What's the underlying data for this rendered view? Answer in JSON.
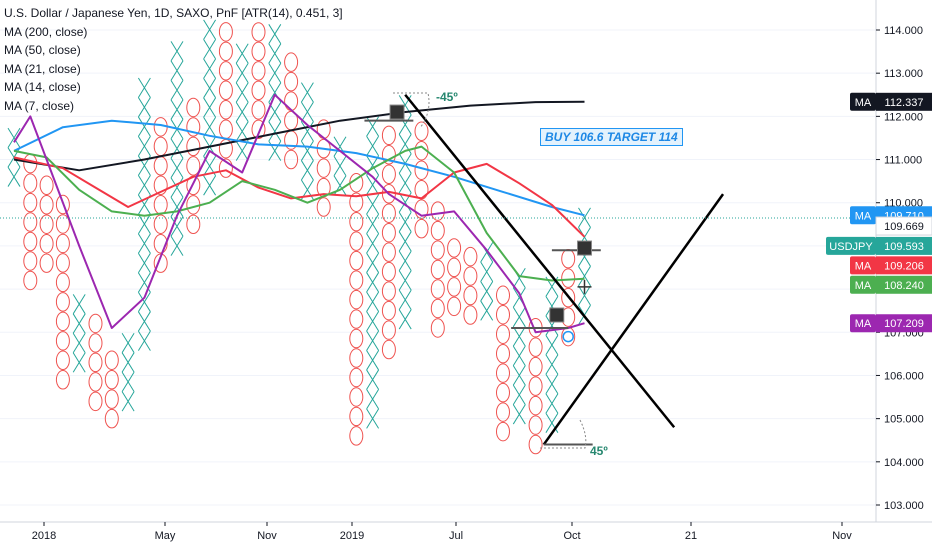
{
  "legend": {
    "title": "U.S. Dollar / Japanese Yen, 1D, SAXO, PnF [ATR(14), 0.451, 3]",
    "ma_lines": [
      "MA (200, close)",
      "MA (50, close)",
      "MA (21, close)",
      "MA (14, close)",
      "MA (7, close)"
    ]
  },
  "annotations": {
    "buy_text": "BUY 106.6 TARGET 114",
    "angle_neg": "-45º",
    "angle_pos": "45º"
  },
  "colors": {
    "x_box": "#26a69a",
    "o_box": "#ef5350",
    "ma200": "#131722",
    "ma50": "#2196f3",
    "ma21": "#f23645",
    "ma14": "#4caf50",
    "ma7": "#9c27b0",
    "trend": "#000000"
  },
  "chart_data": {
    "type": "pnf",
    "ylim": [
      102.8,
      114.6
    ],
    "box_size": 0.451,
    "y_ticks": [
      "114.000",
      "113.000",
      "112.000",
      "111.000",
      "110.000",
      "109.000",
      "108.000",
      "107.000",
      "106.000",
      "105.000",
      "104.000",
      "103.000"
    ],
    "x_ticks": [
      "2018",
      "May",
      "Nov",
      "2019",
      "Jul",
      "Oct",
      "21",
      "Nov"
    ],
    "price_tags": [
      {
        "label": "MA",
        "value": "112.337",
        "color": "#131722",
        "price": 112.337
      },
      {
        "label": "MA",
        "value": "109.710",
        "color": "#2196f3",
        "price": 109.71
      },
      {
        "label": "",
        "value": "109.669",
        "color": "#ffffff",
        "price": 109.46
      },
      {
        "label": "USDJPY",
        "value": "109.593",
        "color": "#26a69a",
        "price": 109.0
      },
      {
        "label": "MA",
        "value": "109.206",
        "color": "#f23645",
        "price": 108.55
      },
      {
        "label": "MA",
        "value": "108.240",
        "color": "#4caf50",
        "price": 108.1
      },
      {
        "label": "MA",
        "value": "107.209",
        "color": "#9c27b0",
        "price": 107.209
      }
    ],
    "columns": [
      {
        "type": "X",
        "from": 110.6,
        "to": 111.5
      },
      {
        "type": "O",
        "from": 108.2,
        "to": 111.0
      },
      {
        "type": "O",
        "from": 108.6,
        "to": 110.6
      },
      {
        "type": "O",
        "from": 105.9,
        "to": 110.0
      },
      {
        "type": "X",
        "from": 106.3,
        "to": 107.7
      },
      {
        "type": "O",
        "from": 105.4,
        "to": 107.2
      },
      {
        "type": "O",
        "from": 105.0,
        "to": 106.3
      },
      {
        "type": "X",
        "from": 105.4,
        "to": 106.6
      },
      {
        "type": "X",
        "from": 106.8,
        "to": 112.5
      },
      {
        "type": "O",
        "from": 108.6,
        "to": 111.9
      },
      {
        "type": "X",
        "from": 109.0,
        "to": 113.3
      },
      {
        "type": "O",
        "from": 109.5,
        "to": 112.4
      },
      {
        "type": "X",
        "from": 110.4,
        "to": 114.2
      },
      {
        "type": "O",
        "from": 110.8,
        "to": 113.8
      },
      {
        "type": "X",
        "from": 111.2,
        "to": 113.6
      },
      {
        "type": "O",
        "from": 111.7,
        "to": 113.8
      },
      {
        "type": "X",
        "from": 111.2,
        "to": 113.8
      },
      {
        "type": "O",
        "from": 111.0,
        "to": 113.2
      },
      {
        "type": "X",
        "from": 110.3,
        "to": 112.5
      },
      {
        "type": "O",
        "from": 109.9,
        "to": 111.9
      },
      {
        "type": "X",
        "from": 110.4,
        "to": 111.5
      },
      {
        "type": "O",
        "from": 104.6,
        "to": 110.3
      },
      {
        "type": "X",
        "from": 105.0,
        "to": 111.8
      },
      {
        "type": "O",
        "from": 106.6,
        "to": 111.4
      },
      {
        "type": "X",
        "from": 107.3,
        "to": 112.3
      },
      {
        "type": "O",
        "from": 109.4,
        "to": 111.8
      },
      {
        "type": "O",
        "from": 107.1,
        "to": 109.7
      },
      {
        "type": "O",
        "from": 107.6,
        "to": 109.0
      },
      {
        "type": "O",
        "from": 107.4,
        "to": 108.6
      },
      {
        "type": "X",
        "from": 107.5,
        "to": 108.8
      },
      {
        "type": "O",
        "from": 104.7,
        "to": 108.0
      },
      {
        "type": "X",
        "from": 105.1,
        "to": 108.3
      },
      {
        "type": "O",
        "from": 104.4,
        "to": 107.1
      },
      {
        "type": "X",
        "from": 104.9,
        "to": 108.1
      },
      {
        "type": "O",
        "from": 106.9,
        "to": 108.6
      },
      {
        "type": "X",
        "from": 107.4,
        "to": 109.8
      }
    ],
    "ma_series": {
      "ma200": [
        [
          0,
          111.0
        ],
        [
          4,
          110.75
        ],
        [
          8,
          111.0
        ],
        [
          12,
          111.3
        ],
        [
          16,
          111.6
        ],
        [
          20,
          111.9
        ],
        [
          24,
          112.1
        ],
        [
          28,
          112.25
        ],
        [
          32,
          112.33
        ],
        [
          35,
          112.34
        ]
      ],
      "ma50": [
        [
          0,
          111.2
        ],
        [
          3,
          111.75
        ],
        [
          6,
          111.9
        ],
        [
          9,
          111.8
        ],
        [
          12,
          111.55
        ],
        [
          15,
          111.35
        ],
        [
          18,
          111.3
        ],
        [
          21,
          111.15
        ],
        [
          24,
          110.9
        ],
        [
          27,
          110.6
        ],
        [
          30,
          110.25
        ],
        [
          33,
          109.9
        ],
        [
          35,
          109.71
        ]
      ],
      "ma21": [
        [
          0,
          111.05
        ],
        [
          3,
          110.8
        ],
        [
          5,
          110.35
        ],
        [
          7,
          109.9
        ],
        [
          9,
          110.25
        ],
        [
          11,
          110.6
        ],
        [
          13,
          110.75
        ],
        [
          15,
          110.35
        ],
        [
          17,
          110.1
        ],
        [
          19,
          110.2
        ],
        [
          21,
          110.15
        ],
        [
          23,
          110.25
        ],
        [
          25,
          110.1
        ],
        [
          27,
          110.7
        ],
        [
          29,
          110.9
        ],
        [
          31,
          110.45
        ],
        [
          33,
          109.95
        ],
        [
          35,
          109.21
        ]
      ],
      "ma14": [
        [
          0,
          111.2
        ],
        [
          2,
          111.05
        ],
        [
          4,
          110.3
        ],
        [
          6,
          109.8
        ],
        [
          8,
          109.7
        ],
        [
          10,
          109.8
        ],
        [
          12,
          110.0
        ],
        [
          14,
          110.5
        ],
        [
          16,
          110.3
        ],
        [
          18,
          110.0
        ],
        [
          20,
          110.3
        ],
        [
          22,
          110.8
        ],
        [
          24,
          111.2
        ],
        [
          25,
          111.3
        ],
        [
          27,
          110.7
        ],
        [
          29,
          109.3
        ],
        [
          31,
          108.3
        ],
        [
          33,
          108.2
        ],
        [
          35,
          108.24
        ]
      ],
      "ma7": [
        [
          0,
          111.4
        ],
        [
          1,
          112.0
        ],
        [
          2,
          111.0
        ],
        [
          4,
          109.0
        ],
        [
          6,
          107.1
        ],
        [
          8,
          107.8
        ],
        [
          10,
          109.7
        ],
        [
          12,
          111.2
        ],
        [
          14,
          110.7
        ],
        [
          16,
          112.5
        ],
        [
          18,
          111.8
        ],
        [
          20,
          111.2
        ],
        [
          22,
          110.6
        ],
        [
          23,
          110.2
        ],
        [
          25,
          109.7
        ],
        [
          27,
          109.8
        ],
        [
          29,
          108.9
        ],
        [
          31,
          107.9
        ],
        [
          32,
          107.0
        ],
        [
          34,
          107.1
        ],
        [
          35,
          107.21
        ]
      ]
    },
    "trendlines": [
      {
        "from": [
          24,
          112.5
        ],
        "to": [
          40.5,
          104.8
        ]
      },
      {
        "from": [
          32.5,
          104.4
        ],
        "to": [
          43.5,
          110.2
        ]
      }
    ],
    "horizontal_lines": [
      {
        "col_from": 21.5,
        "col_to": 24.5,
        "price": 111.9,
        "label": "-45º"
      },
      {
        "col_from": 33.0,
        "col_to": 36.0,
        "price": 108.9
      },
      {
        "col_from": 30.5,
        "col_to": 34.0,
        "price": 107.1
      },
      {
        "col_from": 32.5,
        "col_to": 35.5,
        "price": 104.4,
        "label": "45º"
      }
    ]
  }
}
